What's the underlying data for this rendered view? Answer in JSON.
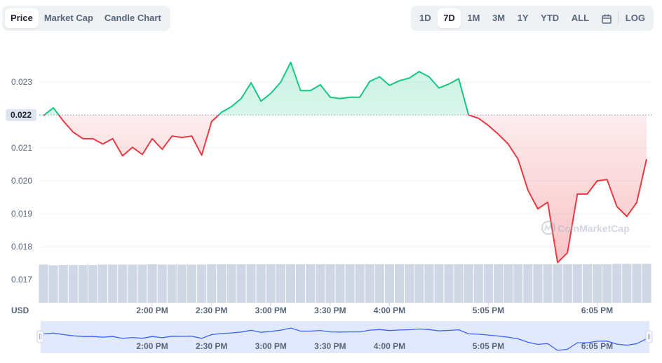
{
  "range_tabs": {
    "chart_types": [
      {
        "label": "Price",
        "active": true
      },
      {
        "label": "Market Cap",
        "active": false
      },
      {
        "label": "Candle Chart",
        "active": false
      }
    ],
    "periods": [
      {
        "label": "1D",
        "active": false
      },
      {
        "label": "7D",
        "active": true
      },
      {
        "label": "1M",
        "active": false
      },
      {
        "label": "3M",
        "active": false
      },
      {
        "label": "1Y",
        "active": false
      },
      {
        "label": "YTD",
        "active": false
      },
      {
        "label": "ALL",
        "active": false
      }
    ],
    "calendar_icon": "calendar-icon",
    "log_label": "LOG"
  },
  "watermark": "CoinMarketCap",
  "colors": {
    "up": "#16c784",
    "down": "#ea3943",
    "volume": "#cfd6e4",
    "navigator_line": "#3861fb",
    "navigator_fill": "#e3e9fd",
    "badge": "#dfe5ef"
  },
  "chart_data": {
    "type": "line",
    "ylabel": "USD",
    "baseline": 0.022,
    "baseline_label": "0.022",
    "y_ticks": [
      {
        "value": 0.023,
        "label": "0.023"
      },
      {
        "value": 0.021,
        "label": "0.021"
      },
      {
        "value": 0.02,
        "label": "0.020"
      },
      {
        "value": 0.019,
        "label": "0.019"
      },
      {
        "value": 0.018,
        "label": "0.018"
      },
      {
        "value": 0.017,
        "label": "0.017"
      }
    ],
    "ylim": [
      0.0163,
      0.0243
    ],
    "xlim": [
      0,
      61
    ],
    "x_ticks": [
      {
        "x": 11,
        "label": "2:00 PM"
      },
      {
        "x": 17,
        "label": "2:30 PM"
      },
      {
        "x": 23,
        "label": "3:00 PM"
      },
      {
        "x": 29,
        "label": "3:30 PM"
      },
      {
        "x": 35,
        "label": "4:00 PM"
      },
      {
        "x": 45,
        "label": "5:05 PM"
      },
      {
        "x": 56,
        "label": "6:05 PM"
      }
    ],
    "price": [
      0.02198,
      0.02222,
      0.02182,
      0.02148,
      0.02128,
      0.02128,
      0.02112,
      0.02128,
      0.02076,
      0.02102,
      0.0208,
      0.02128,
      0.02096,
      0.02136,
      0.02132,
      0.02136,
      0.02078,
      0.0218,
      0.02208,
      0.02225,
      0.0225,
      0.02298,
      0.02242,
      0.02266,
      0.023,
      0.0236,
      0.02274,
      0.02274,
      0.02292,
      0.02254,
      0.0225,
      0.02254,
      0.02254,
      0.02302,
      0.02316,
      0.0229,
      0.02304,
      0.02312,
      0.02332,
      0.02316,
      0.02282,
      0.02294,
      0.0231,
      0.022,
      0.0219,
      0.02168,
      0.02142,
      0.02112,
      0.02066,
      0.01972,
      0.01915,
      0.01935,
      0.01752,
      0.01782,
      0.0196,
      0.0196,
      0.02,
      0.02004,
      0.01922,
      0.01892,
      0.01934,
      0.02066
    ],
    "volume": [
      0.99,
      0.97,
      0.98,
      0.98,
      0.98,
      0.98,
      0.99,
      0.99,
      0.99,
      0.99,
      0.99,
      1.0,
      0.99,
      0.99,
      0.99,
      0.99,
      0.99,
      1.0,
      1.0,
      1.0,
      1.0,
      1.0,
      1.0,
      1.0,
      1.0,
      1.0,
      1.0,
      1.0,
      1.0,
      1.0,
      1.0,
      1.0,
      1.0,
      1.0,
      1.0,
      1.0,
      1.0,
      1.0,
      1.0,
      1.0,
      1.0,
      1.0,
      1.0,
      1.0,
      1.0,
      1.0,
      1.0,
      1.0,
      1.0,
      1.0,
      1.0,
      1.0,
      1.0,
      1.0,
      1.0,
      1.0,
      1.0,
      1.0,
      1.01,
      1.01,
      1.01,
      1.01
    ],
    "grid": true,
    "legend": "none"
  }
}
